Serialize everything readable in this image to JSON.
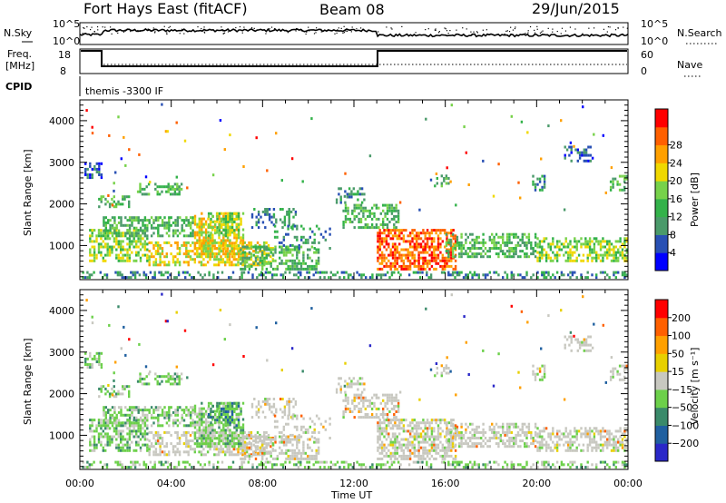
{
  "header": {
    "station": "Fort Hays East (fitACF)",
    "beam": "Beam 08",
    "date": "29/Jun/2015"
  },
  "summary_panels": {
    "nsky_label": "N.Sky",
    "nsearch_label": "N.Search",
    "freq_label": "Freq.",
    "freq_unit": "[MHz]",
    "nave_label": "Nave",
    "cpid_label": "CPID",
    "cpid_text": "themis -3300 IF",
    "noise_ticks_left": [
      "10^5",
      "10^0"
    ],
    "noise_ticks_right": [
      "10^5",
      "10^0"
    ],
    "freq_ticks": [
      "18",
      "8"
    ],
    "nave_ticks": [
      "60",
      "0"
    ]
  },
  "colors": {
    "power": [
      "#0000ff",
      "#2850b4",
      "#4a9a6a",
      "#33b24a",
      "#77d24a",
      "#f0d800",
      "#ffa000",
      "#ff6000",
      "#ff0000"
    ],
    "velocity": [
      "#2a28c8",
      "#2060a0",
      "#3a8a6a",
      "#6cd04a",
      "#c8c8c0",
      "#e8d000",
      "#ffa000",
      "#ff6000",
      "#ff0000"
    ]
  },
  "chart_data": [
    {
      "type": "heatmap",
      "name": "Power",
      "xlabel": "",
      "ylabel": "Slant Range [km]",
      "x_range": [
        "00:00",
        "24:00"
      ],
      "ylim": [
        180,
        4500
      ],
      "y_ticks": [
        "1000",
        "2000",
        "3000",
        "4000"
      ],
      "colorbar": {
        "label": "Power [dB]",
        "ticks": [
          "4",
          "8",
          "12",
          "16",
          "20",
          "24",
          "28"
        ],
        "range": [
          0,
          30
        ]
      }
    },
    {
      "type": "heatmap",
      "name": "Velocity",
      "xlabel": "Time UT",
      "ylabel": "Slant Range [km]",
      "x_ticks": [
        "00:00",
        "04:00",
        "08:00",
        "12:00",
        "16:00",
        "20:00",
        "00:00"
      ],
      "ylim": [
        180,
        4500
      ],
      "y_ticks": [
        "1000",
        "2000",
        "3000",
        "4000"
      ],
      "colorbar": {
        "label": "Velocity [m s⁻¹]",
        "ticks": [
          "200",
          "100",
          "50",
          "15",
          "-15",
          "-50",
          "-100",
          "-200"
        ],
        "range": [
          -250,
          250
        ]
      }
    }
  ]
}
